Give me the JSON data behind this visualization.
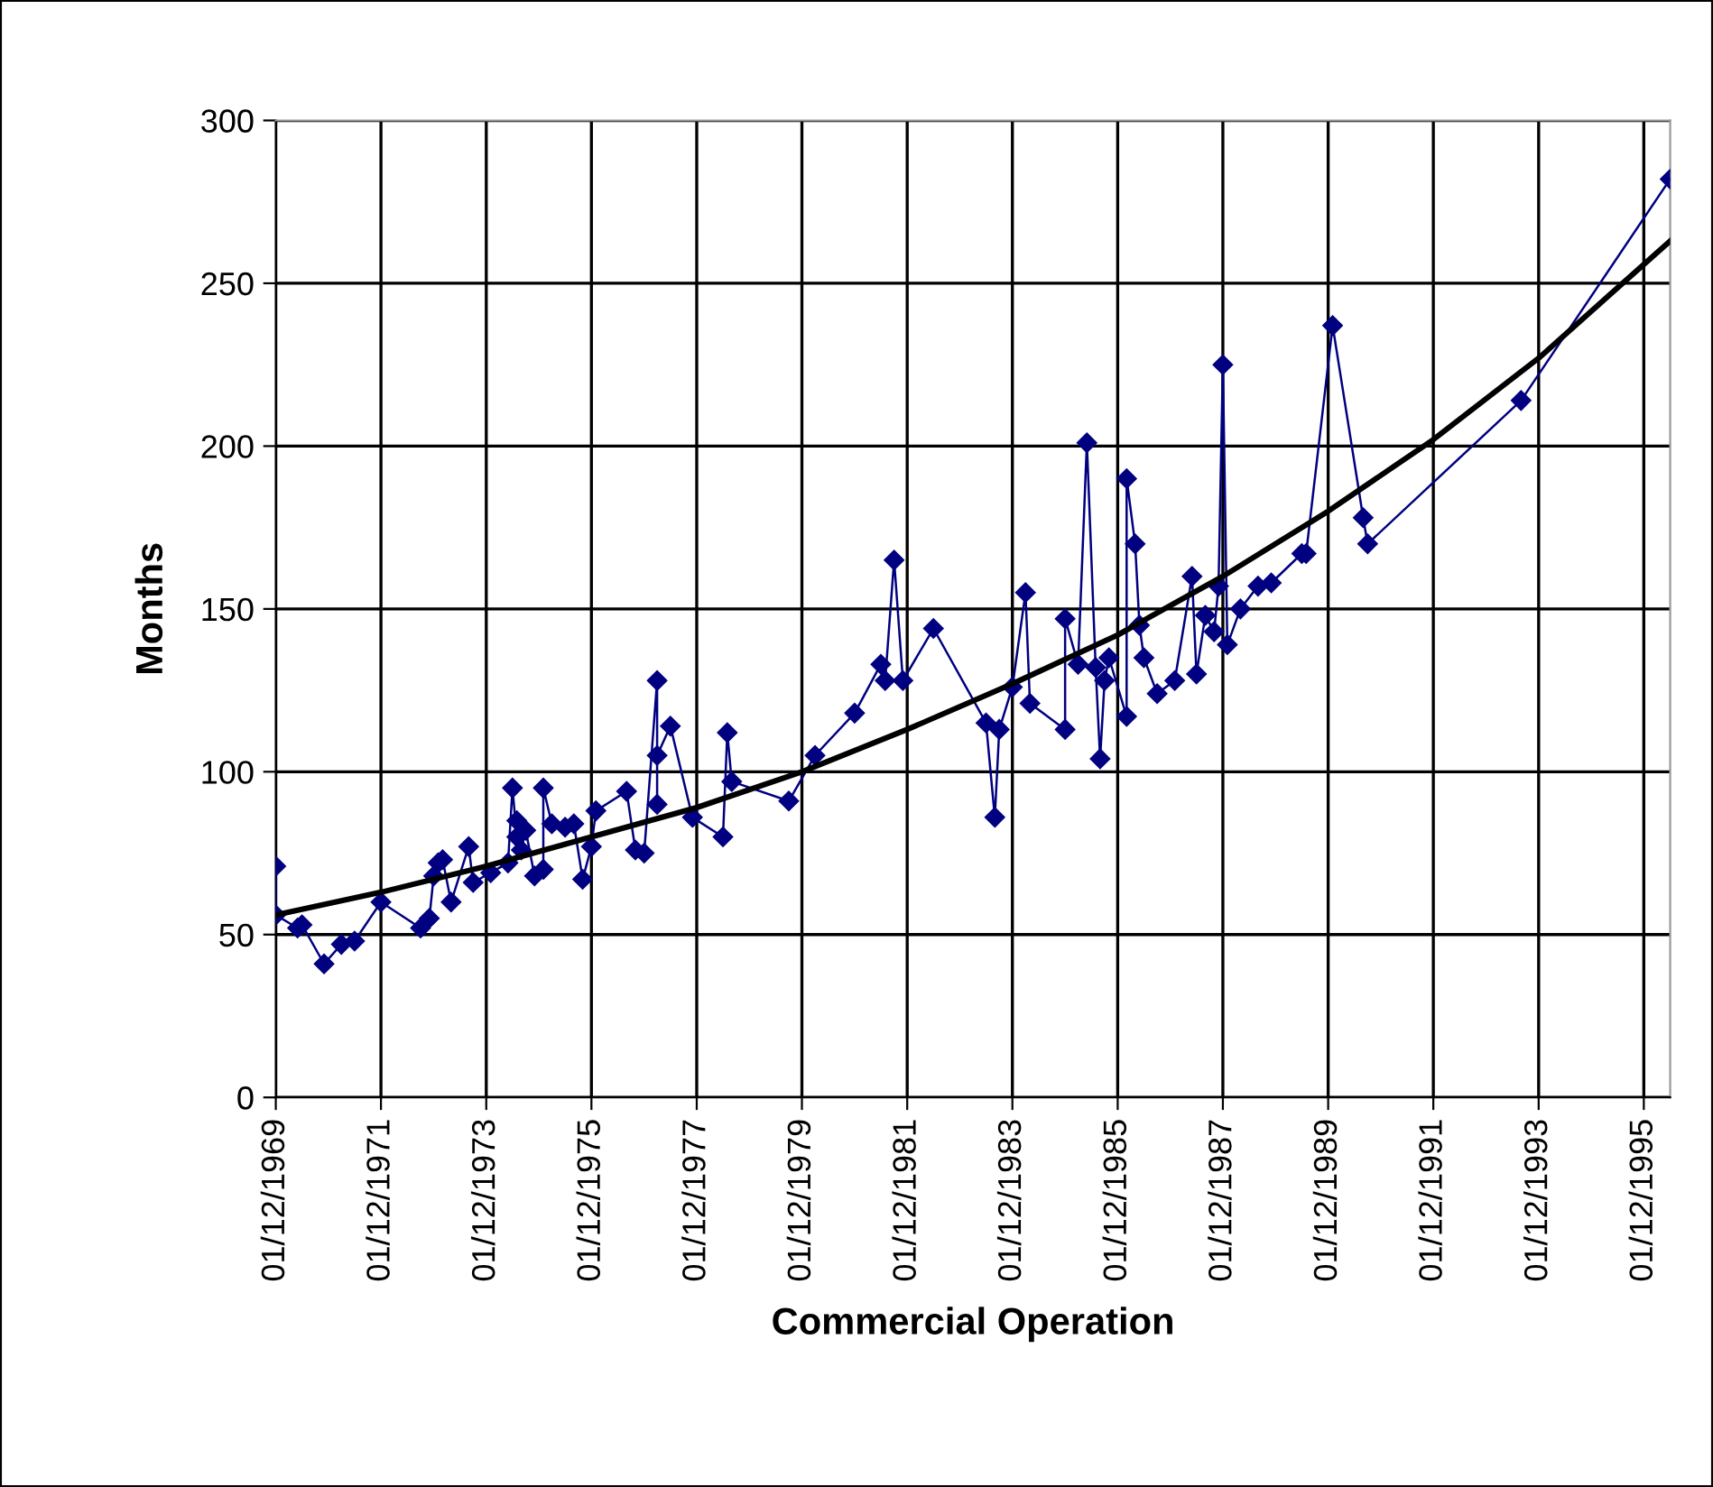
{
  "chart_data": {
    "type": "line",
    "xlabel": "Commercial Operation",
    "ylabel": "Months",
    "xlim": [
      "1969-12-01",
      "1996-06-01"
    ],
    "ylim": [
      0,
      300
    ],
    "yticks": [
      0,
      50,
      100,
      150,
      200,
      250,
      300
    ],
    "xticks": [
      {
        "value": "1969-12-01",
        "label": "01/12/1969"
      },
      {
        "value": "1971-12-01",
        "label": "01/12/1971"
      },
      {
        "value": "1973-12-01",
        "label": "01/12/1973"
      },
      {
        "value": "1975-12-01",
        "label": "01/12/1975"
      },
      {
        "value": "1977-12-01",
        "label": "01/12/1977"
      },
      {
        "value": "1979-12-01",
        "label": "01/12/1979"
      },
      {
        "value": "1981-12-01",
        "label": "01/12/1981"
      },
      {
        "value": "1983-12-01",
        "label": "01/12/1983"
      },
      {
        "value": "1985-12-01",
        "label": "01/12/1985"
      },
      {
        "value": "1987-12-01",
        "label": "01/12/1987"
      },
      {
        "value": "1989-12-01",
        "label": "01/12/1989"
      },
      {
        "value": "1991-12-01",
        "label": "01/12/1991"
      },
      {
        "value": "1993-12-01",
        "label": "01/12/1993"
      },
      {
        "value": "1995-12-01",
        "label": "01/12/1995"
      }
    ],
    "grid": true,
    "legend": false,
    "series": [
      {
        "color": "#000080",
        "marker": "diamond",
        "line_style": "solid",
        "x": [
          "1969-12",
          "1969-12",
          "1970-05",
          "1970-06",
          "1970-11",
          "1971-03",
          "1971-06",
          "1971-12",
          "1972-09",
          "1972-11",
          "1972-12",
          "1973-01",
          "1973-02",
          "1973-04",
          "1973-08",
          "1973-09",
          "1974-01",
          "1974-05",
          "1974-06",
          "1974-07",
          "1974-07",
          "1974-08",
          "1974-09",
          "1974-11",
          "1975-01",
          "1975-01",
          "1975-03",
          "1975-06",
          "1975-08",
          "1975-10",
          "1975-12",
          "1976-01",
          "1976-08",
          "1976-10",
          "1976-12",
          "1977-03",
          "1977-03",
          "1977-03",
          "1977-06",
          "1977-11",
          "1978-06",
          "1978-07",
          "1978-08",
          "1979-09",
          "1980-03",
          "1980-12",
          "1981-06",
          "1981-07",
          "1981-09",
          "1981-11",
          "1982-06",
          "1983-06",
          "1983-08",
          "1983-09",
          "1983-12",
          "1984-03",
          "1984-04",
          "1984-12",
          "1984-12",
          "1985-03",
          "1985-05",
          "1985-07",
          "1985-08",
          "1985-09",
          "1985-10",
          "1986-02",
          "1986-02",
          "1986-04",
          "1986-05",
          "1986-06",
          "1986-09",
          "1987-01",
          "1987-05",
          "1987-06",
          "1987-08",
          "1987-10",
          "1987-11",
          "1987-12",
          "1988-01",
          "1988-04",
          "1988-08",
          "1988-11",
          "1989-06",
          "1989-07",
          "1990-01",
          "1990-08",
          "1990-09",
          "1993-08",
          "1996-06"
        ],
        "values": [
          71,
          56,
          52,
          53,
          41,
          47,
          48,
          60,
          52,
          55,
          68,
          72,
          73,
          60,
          77,
          66,
          69,
          72,
          95,
          80,
          85,
          76,
          82,
          68,
          70,
          95,
          84,
          83,
          84,
          67,
          77,
          88,
          94,
          76,
          75,
          128,
          90,
          105,
          114,
          86,
          80,
          112,
          97,
          91,
          105,
          118,
          133,
          128,
          165,
          128,
          144,
          115,
          86,
          113,
          126,
          155,
          121,
          113,
          147,
          133,
          201,
          132,
          104,
          128,
          135,
          117,
          190,
          170,
          145,
          135,
          124,
          128,
          160,
          130,
          148,
          143,
          157,
          225,
          139,
          150,
          157,
          158,
          167,
          167,
          237,
          178,
          170,
          214,
          282
        ]
      },
      {
        "color": "#000000",
        "marker": "none",
        "line_style": "solid",
        "x": [
          "1969-12",
          "1971-12",
          "1973-12",
          "1975-12",
          "1977-12",
          "1979-12",
          "1981-12",
          "1983-12",
          "1985-12",
          "1987-12",
          "1989-12",
          "1991-12",
          "1993-12",
          "1996-06"
        ],
        "values": [
          56,
          63,
          71,
          80,
          89,
          100,
          113,
          127,
          142,
          160,
          180,
          202,
          227,
          263
        ]
      }
    ]
  }
}
